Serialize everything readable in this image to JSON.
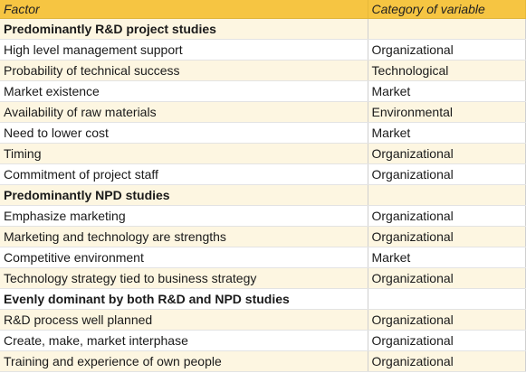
{
  "columns": {
    "factor": "Factor",
    "category": "Category of variable"
  },
  "rows": [
    {
      "factor": "Predominantly R&D project studies",
      "category": "",
      "group": true
    },
    {
      "factor": "High level management support",
      "category": "Organizational"
    },
    {
      "factor": "Probability of technical success",
      "category": "Technological"
    },
    {
      "factor": "Market existence",
      "category": "Market"
    },
    {
      "factor": "Availability of raw materials",
      "category": "Environmental"
    },
    {
      "factor": "Need to lower cost",
      "category": "Market"
    },
    {
      "factor": "Timing",
      "category": "Organizational"
    },
    {
      "factor": "Commitment of project staff",
      "category": "Organizational"
    },
    {
      "factor": "Predominantly NPD studies",
      "category": "",
      "group": true
    },
    {
      "factor": "Emphasize marketing",
      "category": "Organizational"
    },
    {
      "factor": "Marketing and technology are strengths",
      "category": "Organizational"
    },
    {
      "factor": "Competitive environment",
      "category": "Market"
    },
    {
      "factor": "Technology strategy tied to business strategy",
      "category": "Organizational"
    },
    {
      "factor": "Evenly dominant by both R&D and NPD studies",
      "category": "",
      "group": true
    },
    {
      "factor": "R&D process well planned",
      "category": "Organizational"
    },
    {
      "factor": "Create, make, market interphase",
      "category": "Organizational"
    },
    {
      "factor": "Training and experience of own people",
      "category": "Organizational"
    }
  ],
  "colors": {
    "header": "#f6c542",
    "band": "#fdf6e1"
  }
}
